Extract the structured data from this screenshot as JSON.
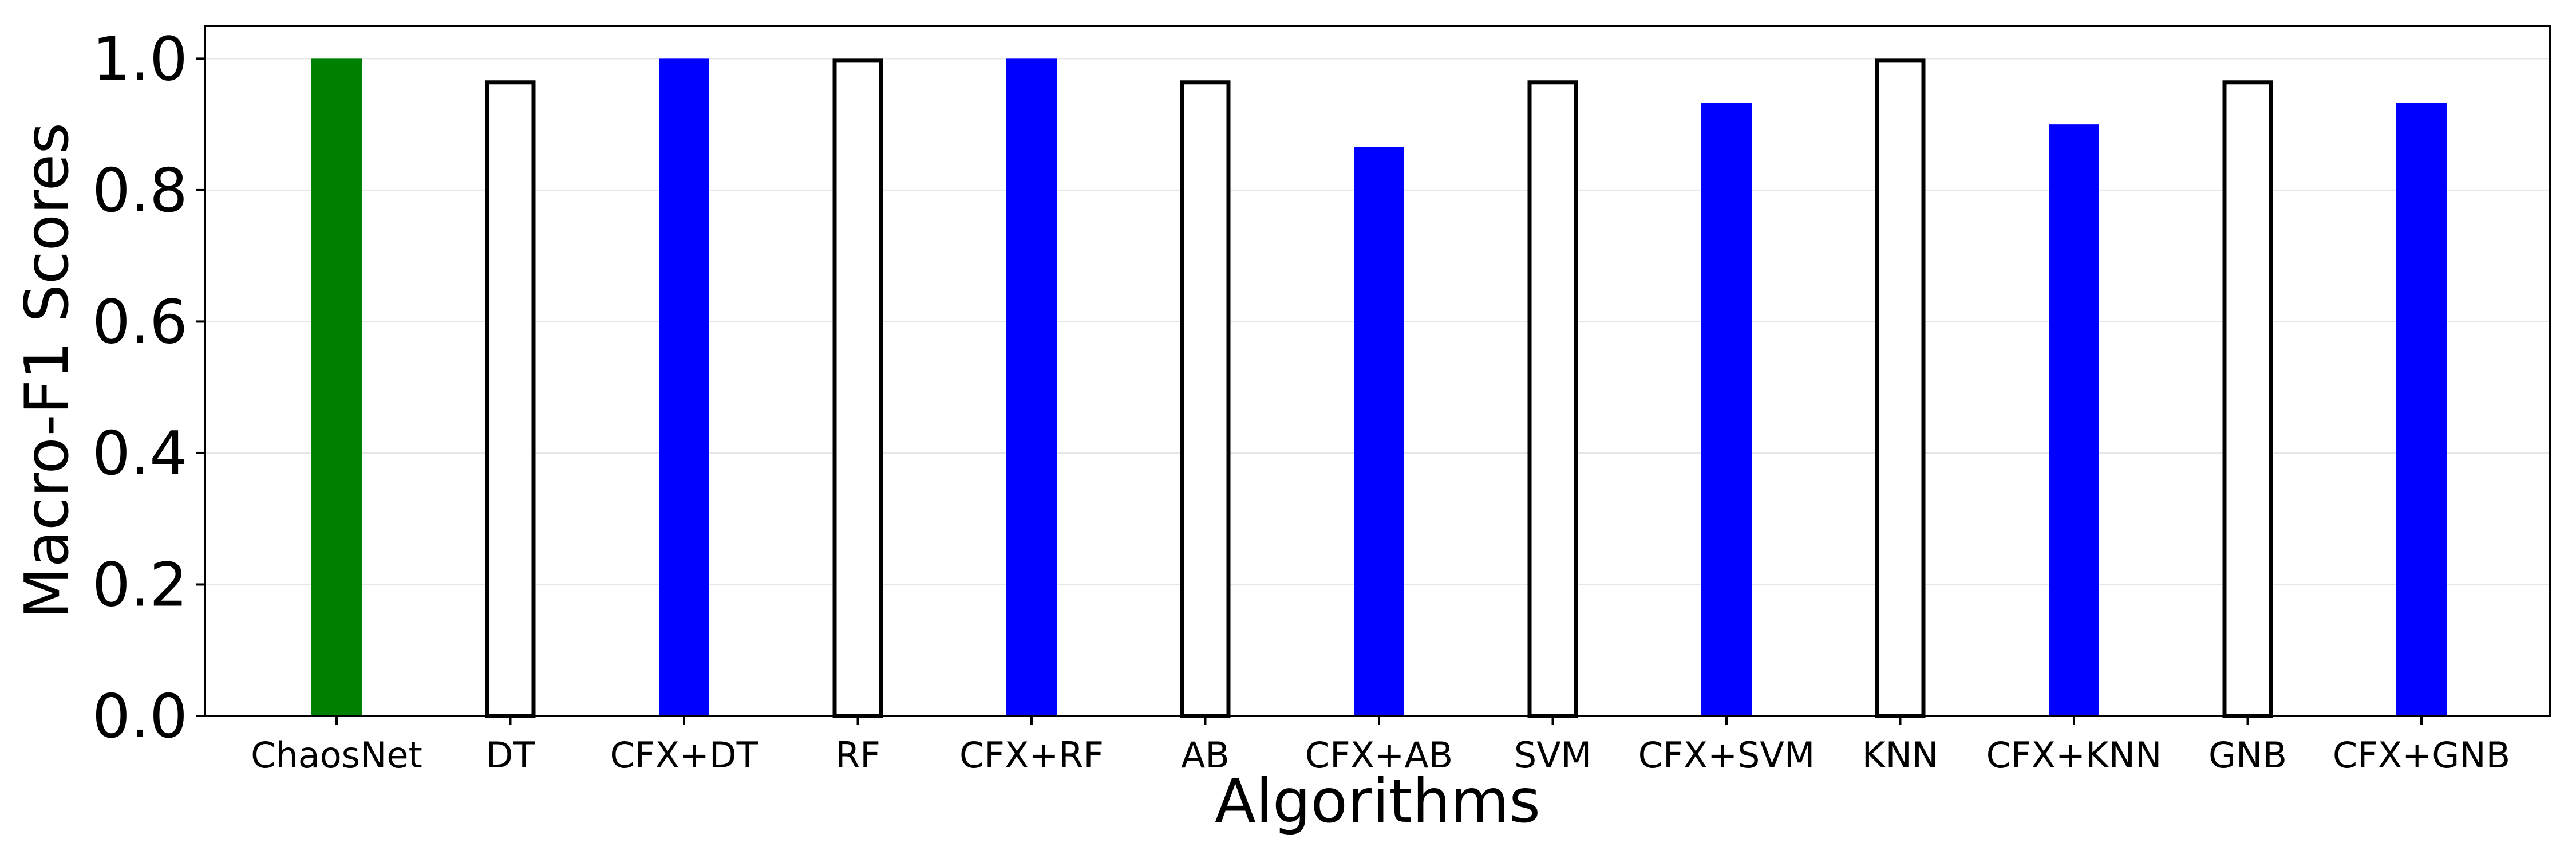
{
  "chart_data": {
    "type": "bar",
    "categories": [
      "ChaosNet",
      "DT",
      "CFX+DT",
      "RF",
      "CFX+RF",
      "AB",
      "CFX+AB",
      "SVM",
      "CFX+SVM",
      "KNN",
      "CFX+KNN",
      "GNB",
      "CFX+GNB"
    ],
    "values": [
      1.0,
      0.967,
      1.0,
      1.0,
      1.0,
      0.967,
      0.866,
      0.967,
      0.933,
      1.0,
      0.9,
      0.967,
      0.933
    ],
    "bar_styles": [
      "filled",
      "outline",
      "filled",
      "outline",
      "filled",
      "outline",
      "filled",
      "outline",
      "filled",
      "outline",
      "filled",
      "outline",
      "filled"
    ],
    "bar_colors": [
      "#008000",
      "#ffffff",
      "#0000ff",
      "#ffffff",
      "#0000ff",
      "#ffffff",
      "#0000ff",
      "#ffffff",
      "#0000ff",
      "#ffffff",
      "#0000ff",
      "#ffffff",
      "#0000ff"
    ],
    "outline_color": "#000000",
    "title": "",
    "xlabel": "Algorithms",
    "ylabel": "Macro-F1 Scores",
    "ylim": [
      0,
      1.05
    ],
    "yticks": [
      "0.0",
      "0.2",
      "0.4",
      "0.6",
      "0.8",
      "1.0"
    ],
    "grid": true
  }
}
